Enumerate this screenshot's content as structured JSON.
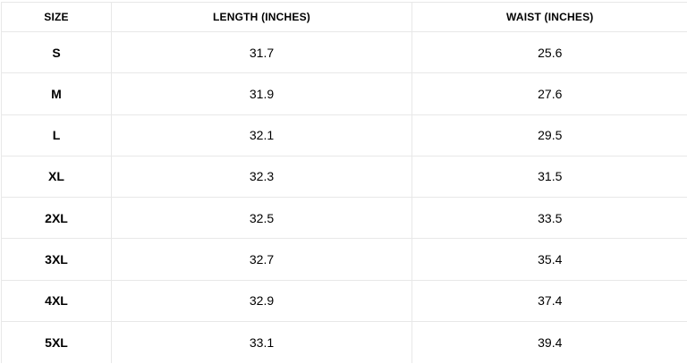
{
  "size_chart": {
    "headers": {
      "size": "SIZE",
      "length": "LENGTH (INCHES)",
      "waist": "WAIST (INCHES)"
    },
    "rows": [
      {
        "size": "S",
        "length": "31.7",
        "waist": "25.6"
      },
      {
        "size": "M",
        "length": "31.9",
        "waist": "27.6"
      },
      {
        "size": "L",
        "length": "32.1",
        "waist": "29.5"
      },
      {
        "size": "XL",
        "length": "32.3",
        "waist": "31.5"
      },
      {
        "size": "2XL",
        "length": "32.5",
        "waist": "33.5"
      },
      {
        "size": "3XL",
        "length": "32.7",
        "waist": "35.4"
      },
      {
        "size": "4XL",
        "length": "32.9",
        "waist": "37.4"
      },
      {
        "size": "5XL",
        "length": "33.1",
        "waist": "39.4"
      }
    ]
  },
  "colors": {
    "border": "#e8e8e8",
    "text": "#000000",
    "background": "#ffffff"
  }
}
